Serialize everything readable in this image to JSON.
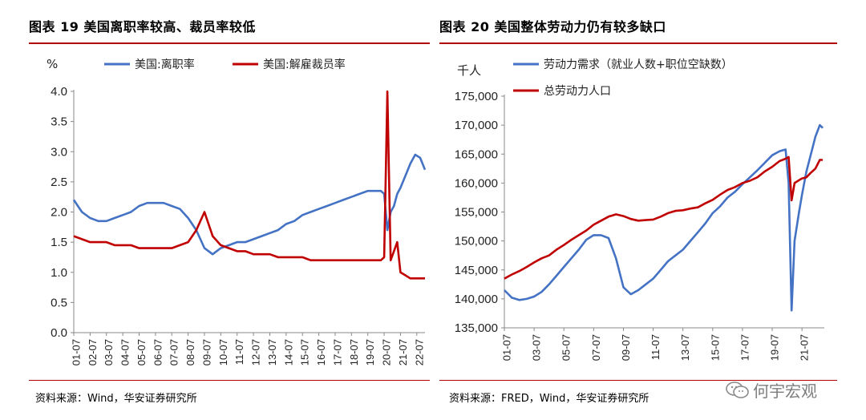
{
  "page": {
    "left_title": "图表 19  美国离职率较高、裁员率较低",
    "right_title": "图表 20  美国整体劳动力仍有较多缺口",
    "left_source": "资料来源：Wind，华安证券研究所",
    "right_source": "资料来源：FRED，Wind，华安证券研究所",
    "watermark": "何宇宏观",
    "watermark_icon": "wechat-icon"
  },
  "chart_data": [
    {
      "type": "line",
      "title": "图表 19  美国离职率较高、裁员率较低",
      "ylabel": "%",
      "ylim": [
        0.0,
        4.0
      ],
      "yticks": [
        "4.0",
        "3.5",
        "3.0",
        "2.5",
        "2.0",
        "1.5",
        "1.0",
        "0.5",
        "0.0"
      ],
      "xticks": [
        "01-07",
        "02-07",
        "03-07",
        "04-07",
        "05-07",
        "06-07",
        "07-07",
        "08-07",
        "09-07",
        "10-07",
        "11-07",
        "12-07",
        "13-07",
        "14-07",
        "15-07",
        "16-07",
        "17-07",
        "18-07",
        "19-07",
        "20-07",
        "21-07",
        "22-07"
      ],
      "x": [
        2001.0,
        2001.5,
        2002.0,
        2002.5,
        2003.0,
        2003.5,
        2004.0,
        2004.5,
        2005.0,
        2005.5,
        2006.0,
        2006.5,
        2007.0,
        2007.5,
        2008.0,
        2008.5,
        2009.0,
        2009.5,
        2010.0,
        2010.5,
        2011.0,
        2011.5,
        2012.0,
        2012.5,
        2013.0,
        2013.5,
        2014.0,
        2014.5,
        2015.0,
        2015.5,
        2016.0,
        2016.5,
        2017.0,
        2017.5,
        2018.0,
        2018.5,
        2019.0,
        2019.5,
        2019.8,
        2020.0,
        2020.2,
        2020.4,
        2020.6,
        2020.8,
        2021.0,
        2021.3,
        2021.6,
        2021.9,
        2022.2,
        2022.5
      ],
      "series": [
        {
          "name": "美国:离职率",
          "color": "#4472c4",
          "values": [
            2.2,
            2.0,
            1.9,
            1.85,
            1.85,
            1.9,
            1.95,
            2.0,
            2.1,
            2.15,
            2.15,
            2.15,
            2.1,
            2.05,
            1.9,
            1.7,
            1.4,
            1.3,
            1.4,
            1.45,
            1.5,
            1.5,
            1.55,
            1.6,
            1.65,
            1.7,
            1.8,
            1.85,
            1.95,
            2.0,
            2.05,
            2.1,
            2.15,
            2.2,
            2.25,
            2.3,
            2.35,
            2.35,
            2.35,
            2.3,
            1.7,
            2.0,
            2.1,
            2.3,
            2.4,
            2.6,
            2.8,
            2.95,
            2.9,
            2.7
          ]
        },
        {
          "name": "美国:解雇裁员率",
          "color": "#c00000",
          "values": [
            1.6,
            1.55,
            1.5,
            1.5,
            1.5,
            1.45,
            1.45,
            1.45,
            1.4,
            1.4,
            1.4,
            1.4,
            1.4,
            1.45,
            1.5,
            1.7,
            2.0,
            1.6,
            1.45,
            1.4,
            1.35,
            1.35,
            1.3,
            1.3,
            1.3,
            1.25,
            1.25,
            1.25,
            1.25,
            1.2,
            1.2,
            1.2,
            1.2,
            1.2,
            1.2,
            1.2,
            1.2,
            1.2,
            1.2,
            1.25,
            4.0,
            1.2,
            1.35,
            1.5,
            1.0,
            0.95,
            0.9,
            0.9,
            0.9,
            0.9
          ]
        }
      ],
      "legend": "top"
    },
    {
      "type": "line",
      "title": "图表 20  美国整体劳动力仍有较多缺口",
      "ylabel": "千人",
      "ylim": [
        135000,
        175000
      ],
      "yticks": [
        "175,000",
        "170,000",
        "165,000",
        "160,000",
        "155,000",
        "150,000",
        "145,000",
        "140,000",
        "135,000"
      ],
      "xticks": [
        "01-07",
        "03-07",
        "05-07",
        "07-07",
        "09-07",
        "11-07",
        "13-07",
        "15-07",
        "17-07",
        "19-07",
        "21-07"
      ],
      "x": [
        2001.0,
        2001.5,
        2002.0,
        2002.5,
        2003.0,
        2003.5,
        2004.0,
        2004.5,
        2005.0,
        2005.5,
        2006.0,
        2006.5,
        2007.0,
        2007.5,
        2008.0,
        2008.5,
        2009.0,
        2009.5,
        2010.0,
        2010.5,
        2011.0,
        2011.5,
        2012.0,
        2012.5,
        2013.0,
        2013.5,
        2014.0,
        2014.5,
        2015.0,
        2015.5,
        2016.0,
        2016.5,
        2017.0,
        2017.5,
        2018.0,
        2018.5,
        2019.0,
        2019.5,
        2019.9,
        2020.1,
        2020.3,
        2020.5,
        2020.8,
        2021.0,
        2021.3,
        2021.6,
        2021.9,
        2022.2,
        2022.4
      ],
      "series": [
        {
          "name": "劳动力需求（就业人数+职位空缺数）",
          "color": "#4472c4",
          "values": [
            141500,
            140200,
            139800,
            140000,
            140400,
            141200,
            142500,
            144000,
            145500,
            147000,
            148500,
            150200,
            151000,
            151000,
            150500,
            147000,
            142000,
            140800,
            141500,
            142500,
            143500,
            145000,
            146500,
            147500,
            148500,
            150000,
            151500,
            153000,
            154800,
            156000,
            157500,
            158500,
            159800,
            161000,
            162200,
            163500,
            164800,
            165500,
            165800,
            160000,
            138000,
            150000,
            155000,
            158000,
            162000,
            165000,
            168000,
            170000,
            169500
          ]
        },
        {
          "name": "总劳动力人口",
          "color": "#c00000",
          "values": [
            143500,
            144200,
            144800,
            145500,
            146300,
            147000,
            147500,
            148500,
            149300,
            150200,
            151000,
            151800,
            152800,
            153500,
            154200,
            154600,
            154300,
            153800,
            153500,
            153600,
            153700,
            154200,
            154800,
            155200,
            155300,
            155600,
            155800,
            156500,
            157100,
            158000,
            158800,
            159300,
            160000,
            160400,
            161000,
            162000,
            162800,
            163800,
            164200,
            164500,
            157000,
            160000,
            160500,
            160800,
            161000,
            161800,
            162500,
            164000,
            164000
          ]
        }
      ],
      "legend": "top-left"
    }
  ]
}
